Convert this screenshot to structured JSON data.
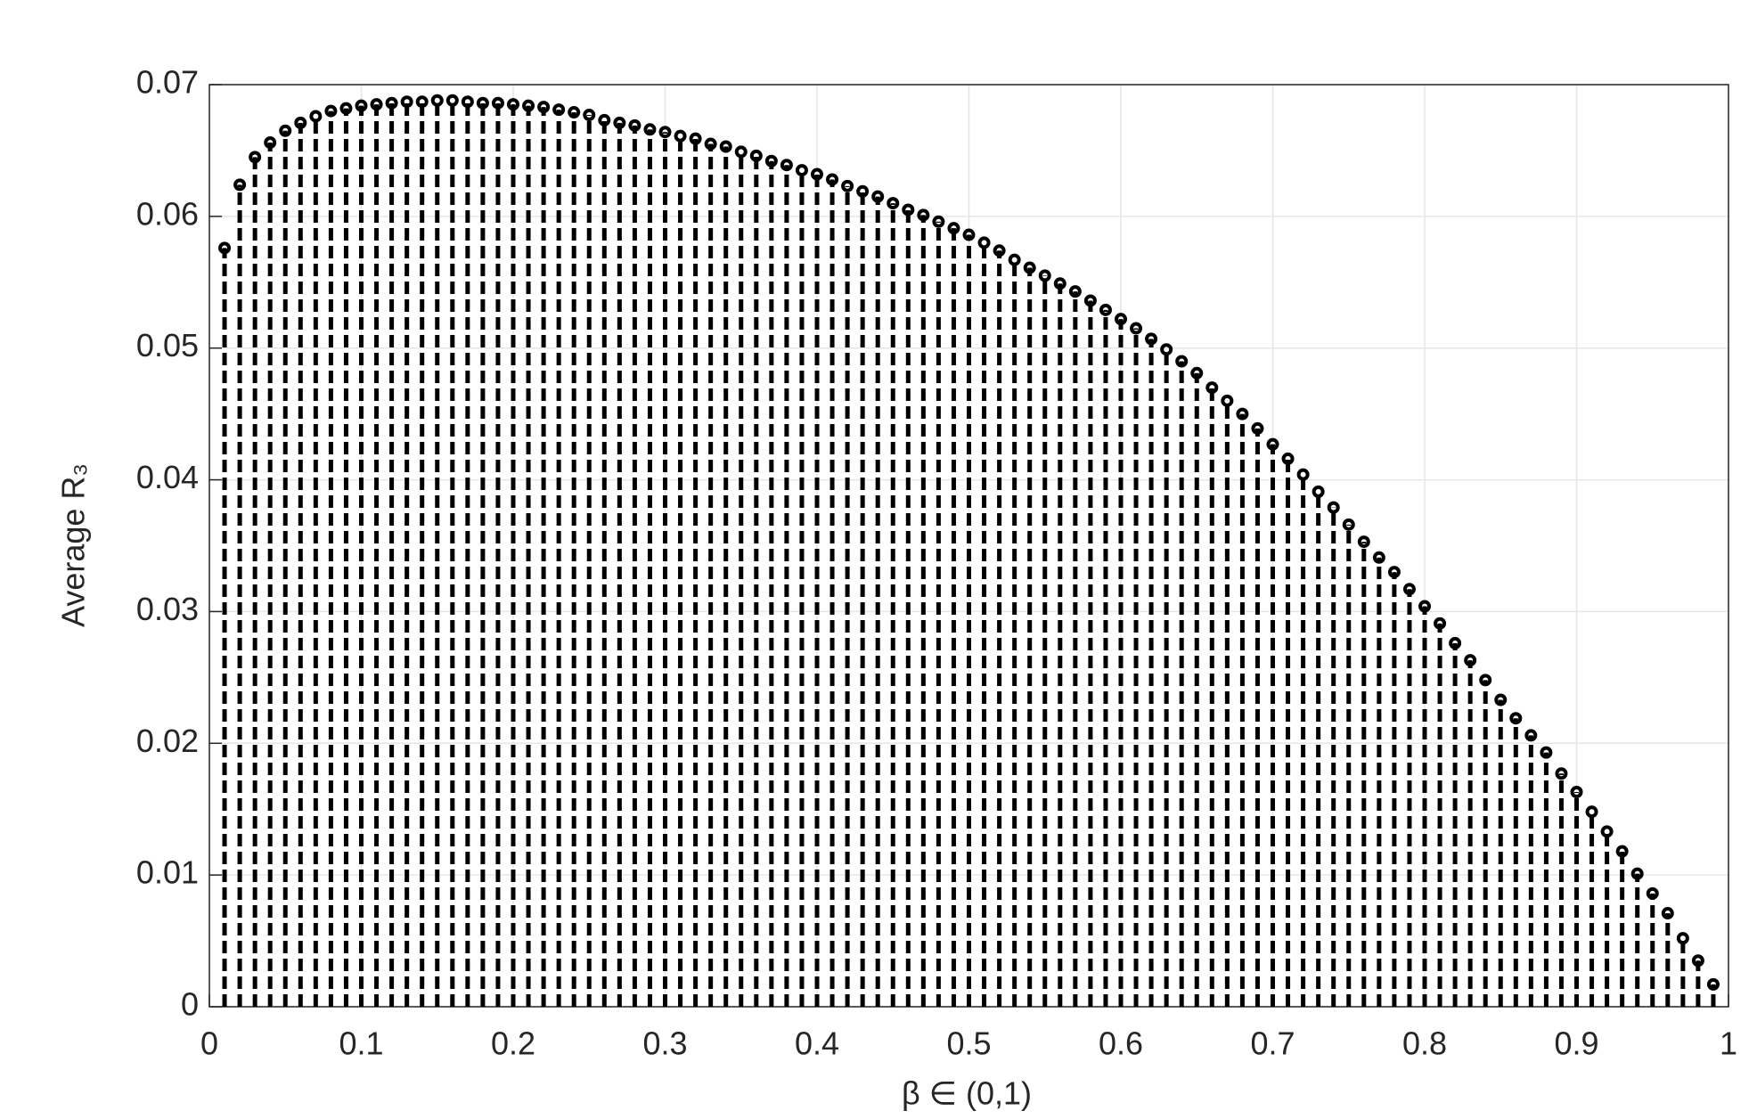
{
  "chart_data": {
    "type": "stem",
    "xlabel": "β ∈ (0,1)",
    "ylabel": "Average R₃",
    "xlim": [
      0,
      1
    ],
    "ylim": [
      0,
      0.07
    ],
    "xticks": [
      0,
      0.1,
      0.2,
      0.3,
      0.4,
      0.5,
      0.6,
      0.7,
      0.8,
      0.9,
      1
    ],
    "yticks": [
      0,
      0.01,
      0.02,
      0.03,
      0.04,
      0.05,
      0.06,
      0.07
    ],
    "grid": true,
    "color": "#000000",
    "x": [
      0.01,
      0.02,
      0.03,
      0.04,
      0.05,
      0.06,
      0.07,
      0.08,
      0.09,
      0.1,
      0.11,
      0.12,
      0.13,
      0.14,
      0.15,
      0.16,
      0.17,
      0.18,
      0.19,
      0.2,
      0.21,
      0.22,
      0.23,
      0.24,
      0.25,
      0.26,
      0.27,
      0.28,
      0.29,
      0.3,
      0.31,
      0.32,
      0.33,
      0.34,
      0.35,
      0.36,
      0.37,
      0.38,
      0.39,
      0.4,
      0.41,
      0.42,
      0.43,
      0.44,
      0.45,
      0.46,
      0.47,
      0.48,
      0.49,
      0.5,
      0.51,
      0.52,
      0.53,
      0.54,
      0.55,
      0.56,
      0.57,
      0.58,
      0.59,
      0.6,
      0.61,
      0.62,
      0.63,
      0.64,
      0.65,
      0.66,
      0.67,
      0.68,
      0.69,
      0.7,
      0.71,
      0.72,
      0.73,
      0.74,
      0.75,
      0.76,
      0.77,
      0.78,
      0.79,
      0.8,
      0.81,
      0.82,
      0.83,
      0.84,
      0.85,
      0.86,
      0.87,
      0.88,
      0.89,
      0.9,
      0.91,
      0.92,
      0.93,
      0.94,
      0.95,
      0.96,
      0.97,
      0.98,
      0.99
    ],
    "values": [
      0.0576,
      0.0624,
      0.0645,
      0.0656,
      0.0665,
      0.0671,
      0.0676,
      0.068,
      0.0682,
      0.0684,
      0.0685,
      0.0686,
      0.0687,
      0.0687,
      0.0688,
      0.0688,
      0.0687,
      0.0686,
      0.0686,
      0.0685,
      0.0684,
      0.0683,
      0.0681,
      0.0679,
      0.0677,
      0.0673,
      0.0671,
      0.0669,
      0.0666,
      0.0664,
      0.0661,
      0.0659,
      0.0655,
      0.0653,
      0.0649,
      0.0646,
      0.0642,
      0.0639,
      0.0635,
      0.0632,
      0.0628,
      0.0623,
      0.0619,
      0.0615,
      0.061,
      0.0605,
      0.0601,
      0.0596,
      0.0591,
      0.0586,
      0.058,
      0.0574,
      0.0567,
      0.0561,
      0.0555,
      0.0549,
      0.0543,
      0.0536,
      0.0529,
      0.0522,
      0.0515,
      0.0507,
      0.0499,
      0.049,
      0.0481,
      0.047,
      0.046,
      0.045,
      0.0439,
      0.0427,
      0.0416,
      0.0404,
      0.0391,
      0.0379,
      0.0366,
      0.0353,
      0.0341,
      0.033,
      0.0317,
      0.0304,
      0.0291,
      0.0276,
      0.0263,
      0.0248,
      0.0233,
      0.0219,
      0.0206,
      0.0193,
      0.0177,
      0.0163,
      0.0148,
      0.0133,
      0.0118,
      0.0101,
      0.0086,
      0.0071,
      0.0052,
      0.0035,
      0.0017
    ]
  }
}
